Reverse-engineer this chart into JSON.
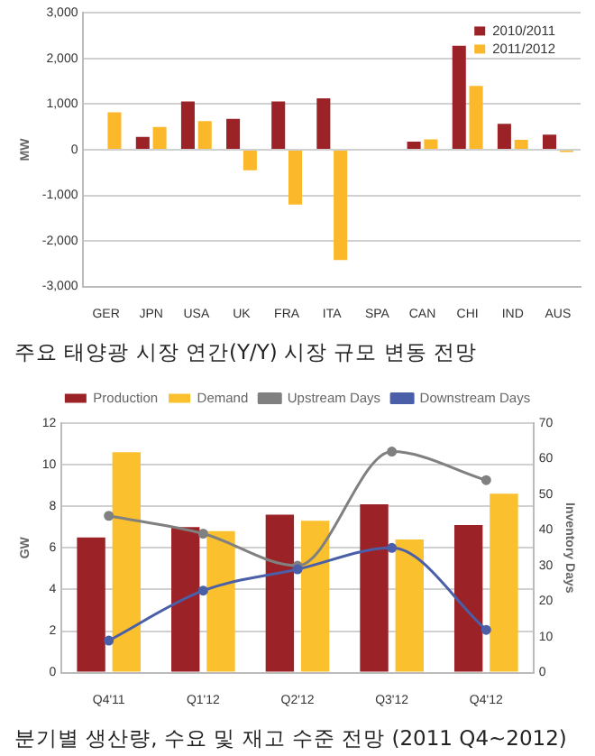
{
  "chart_data": [
    {
      "type": "bar",
      "title": "주요 태양광 시장 연간(Y/Y) 시장 규모 변동 전망",
      "ylabel": "MW",
      "categories": [
        "GER",
        "JPN",
        "USA",
        "UK",
        "FRA",
        "ITA",
        "SPA",
        "CAN",
        "CHI",
        "IND",
        "AUS"
      ],
      "series": [
        {
          "name": "2010/2011",
          "color": "#9b2226",
          "values": [
            20,
            280,
            1060,
            680,
            1060,
            1130,
            0,
            180,
            2280,
            570,
            330
          ]
        },
        {
          "name": "2011/2012",
          "color": "#fbb82a",
          "values": [
            820,
            500,
            630,
            -450,
            -1200,
            -2420,
            0,
            230,
            1400,
            220,
            -50
          ]
        }
      ],
      "ylim": [
        -3000,
        3000
      ],
      "yticks": [
        {
          "value": -3000,
          "label": "-3,000"
        },
        {
          "value": -2000,
          "label": "-2,000"
        },
        {
          "value": -1000,
          "label": "-1,000"
        },
        0,
        {
          "value": 1000,
          "label": "1,000"
        },
        {
          "value": 2000,
          "label": "2,000"
        },
        {
          "value": 3000,
          "label": "3,000"
        }
      ],
      "grid": "y",
      "legend": "top right"
    },
    {
      "type": "bar",
      "title": "분기별 생산량, 수요 및 재고 수준 전망 (2011 Q4~2012)",
      "ylabel": "GW",
      "y2label": "Inventory Days",
      "categories": [
        "Q4'11",
        "Q1'12",
        "Q2'12",
        "Q3'12",
        "Q4'12"
      ],
      "series": [
        {
          "name": "Production",
          "color": "#9b2226",
          "values": [
            6.5,
            7.0,
            7.6,
            8.1,
            7.1
          ]
        },
        {
          "name": "Demand",
          "color": "#fbc02d",
          "values": [
            10.6,
            6.8,
            7.3,
            6.4,
            8.6
          ]
        },
        {
          "name": "Upstream Days",
          "type": "line",
          "axis": "y2",
          "color": "#808080",
          "values": [
            44,
            39,
            30,
            62,
            54
          ]
        },
        {
          "name": "Downstream Days",
          "type": "line",
          "axis": "y2",
          "color": "#4a5fa8",
          "values": [
            9,
            23,
            29,
            35,
            12
          ]
        }
      ],
      "ylim": [
        0,
        12
      ],
      "yticks": [
        0,
        2,
        4,
        6,
        8,
        10,
        12
      ],
      "y2lim": [
        0,
        70
      ],
      "y2ticks": [
        0,
        10,
        20,
        30,
        40,
        50,
        60,
        70
      ],
      "grid": "y",
      "legend": "top",
      "marker": "circle"
    }
  ]
}
